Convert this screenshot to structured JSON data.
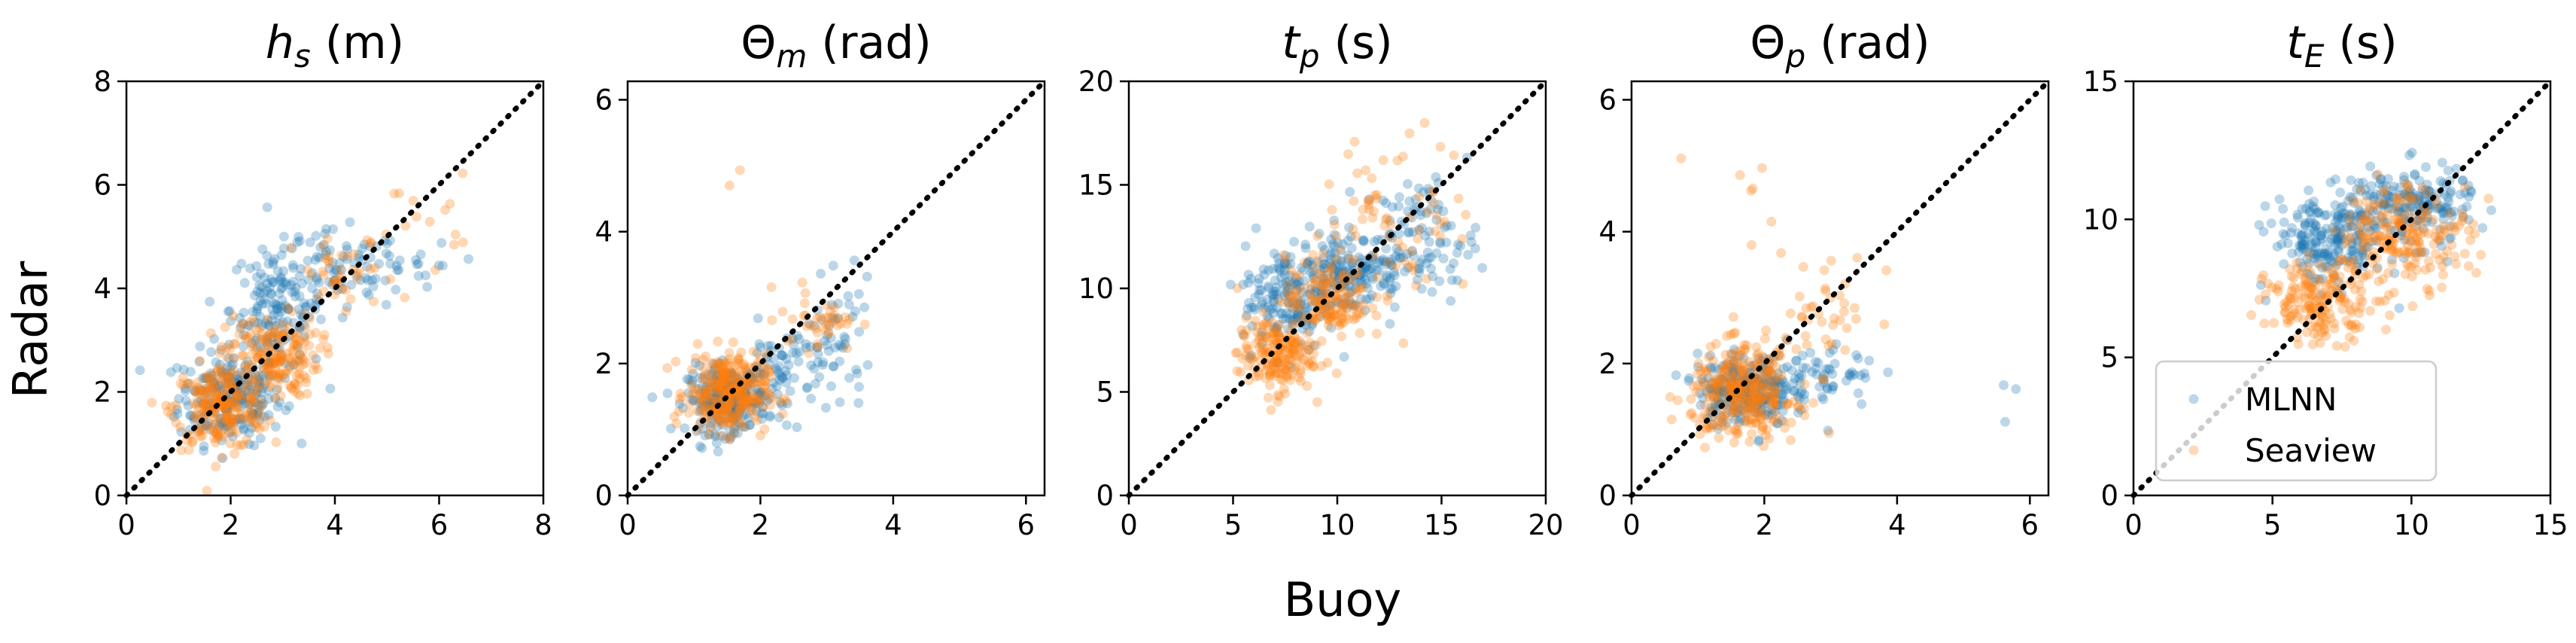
{
  "figure": {
    "xlabel": "Buoy",
    "ylabel": "Radar"
  },
  "legend": {
    "entries": [
      "MLNN",
      "Seaview"
    ],
    "placement": "lower-right",
    "panel_index": 4
  },
  "colors": {
    "MLNN": "#1f77b4",
    "Seaview": "#ff7f0e",
    "identity_line": "#000000"
  },
  "chart_data": [
    {
      "type": "scatter",
      "title": {
        "base": "h",
        "sub": "s",
        "unit": "(m)"
      },
      "xlim": [
        0,
        8
      ],
      "ylim": [
        0,
        8
      ],
      "xticks": [
        0,
        2,
        4,
        6,
        8
      ],
      "yticks": [
        0,
        2,
        4,
        6,
        8
      ],
      "identity_line": true,
      "series": [
        {
          "name": "MLNN",
          "clusters": [
            {
              "cx": 2.0,
              "cy": 1.9,
              "sx": 0.5,
              "sy": 0.45,
              "n": 220
            },
            {
              "cx": 2.9,
              "cy": 3.6,
              "sx": 0.45,
              "sy": 0.6,
              "n": 160
            },
            {
              "cx": 4.1,
              "cy": 4.3,
              "sx": 0.6,
              "sy": 0.4,
              "n": 70
            },
            {
              "cx": 5.6,
              "cy": 4.4,
              "sx": 0.4,
              "sy": 0.25,
              "n": 20
            }
          ]
        },
        {
          "name": "Seaview",
          "clusters": [
            {
              "cx": 1.8,
              "cy": 1.7,
              "sx": 0.45,
              "sy": 0.4,
              "n": 220
            },
            {
              "cx": 2.8,
              "cy": 2.7,
              "sx": 0.45,
              "sy": 0.4,
              "n": 180
            },
            {
              "cx": 4.2,
              "cy": 4.2,
              "sx": 0.5,
              "sy": 0.4,
              "n": 40
            },
            {
              "cx": 5.7,
              "cy": 5.4,
              "sx": 0.45,
              "sy": 0.4,
              "n": 15
            }
          ]
        }
      ]
    },
    {
      "type": "scatter",
      "title": {
        "base": "Θ",
        "sub": "m",
        "unit": "(rad)"
      },
      "xlim": [
        0,
        6.28
      ],
      "ylim": [
        0,
        6.28
      ],
      "xticks": [
        0,
        2,
        4,
        6
      ],
      "yticks": [
        0,
        2,
        4,
        6
      ],
      "identity_line": true,
      "series": [
        {
          "name": "MLNN",
          "clusters": [
            {
              "cx": 1.5,
              "cy": 1.45,
              "sx": 0.3,
              "sy": 0.25,
              "n": 250
            },
            {
              "cx": 2.4,
              "cy": 1.9,
              "sx": 0.4,
              "sy": 0.35,
              "n": 80
            },
            {
              "cx": 3.2,
              "cy": 2.4,
              "sx": 0.25,
              "sy": 0.4,
              "n": 40
            }
          ]
        },
        {
          "name": "Seaview",
          "clusters": [
            {
              "cx": 1.5,
              "cy": 1.55,
              "sx": 0.3,
              "sy": 0.3,
              "n": 300
            },
            {
              "cx": 2.9,
              "cy": 2.7,
              "sx": 0.3,
              "sy": 0.25,
              "n": 40
            },
            {
              "cx": 1.8,
              "cy": 5.0,
              "sx": 0.08,
              "sy": 0.2,
              "n": 2
            }
          ]
        }
      ]
    },
    {
      "type": "scatter",
      "title": {
        "base": "t",
        "sub": "p",
        "unit": "(s)"
      },
      "xlim": [
        0,
        20
      ],
      "ylim": [
        0,
        20
      ],
      "xticks": [
        0,
        5,
        10,
        15,
        20
      ],
      "yticks": [
        0,
        5,
        10,
        15,
        20
      ],
      "identity_line": true,
      "series": [
        {
          "name": "MLNN",
          "clusters": [
            {
              "cx": 7.5,
              "cy": 9.5,
              "sx": 1.0,
              "sy": 1.3,
              "n": 150
            },
            {
              "cx": 10.5,
              "cy": 10.8,
              "sx": 1.3,
              "sy": 1.0,
              "n": 180
            },
            {
              "cx": 14.0,
              "cy": 12.5,
              "sx": 1.4,
              "sy": 1.4,
              "n": 100
            }
          ]
        },
        {
          "name": "Seaview",
          "clusters": [
            {
              "cx": 7.0,
              "cy": 6.8,
              "sx": 0.9,
              "sy": 0.9,
              "n": 180
            },
            {
              "cx": 9.5,
              "cy": 9.5,
              "sx": 1.0,
              "sy": 1.0,
              "n": 150
            },
            {
              "cx": 13.0,
              "cy": 13.5,
              "sx": 1.8,
              "sy": 2.0,
              "n": 70
            }
          ]
        }
      ]
    },
    {
      "type": "scatter",
      "title": {
        "base": "Θ",
        "sub": "p",
        "unit": "(rad)"
      },
      "xlim": [
        0,
        6.28
      ],
      "ylim": [
        0,
        6.28
      ],
      "xticks": [
        0,
        2,
        4,
        6
      ],
      "yticks": [
        0,
        2,
        4,
        6
      ],
      "identity_line": true,
      "series": [
        {
          "name": "MLNN",
          "clusters": [
            {
              "cx": 1.7,
              "cy": 1.6,
              "sx": 0.35,
              "sy": 0.25,
              "n": 250
            },
            {
              "cx": 2.8,
              "cy": 1.8,
              "sx": 0.45,
              "sy": 0.3,
              "n": 70
            },
            {
              "cx": 5.7,
              "cy": 1.5,
              "sx": 0.1,
              "sy": 0.15,
              "n": 3
            }
          ]
        },
        {
          "name": "Seaview",
          "clusters": [
            {
              "cx": 1.7,
              "cy": 1.55,
              "sx": 0.4,
              "sy": 0.35,
              "n": 300
            },
            {
              "cx": 2.9,
              "cy": 2.8,
              "sx": 0.4,
              "sy": 0.45,
              "n": 40
            },
            {
              "cx": 2.0,
              "cy": 4.5,
              "sx": 0.15,
              "sy": 0.5,
              "n": 6
            },
            {
              "cx": 0.7,
              "cy": 5.1,
              "sx": 0.05,
              "sy": 0.05,
              "n": 1
            }
          ]
        }
      ]
    },
    {
      "type": "scatter",
      "title": {
        "base": "t",
        "sub": "E",
        "unit": "(s)"
      },
      "xlim": [
        0,
        15
      ],
      "ylim": [
        0,
        15
      ],
      "xticks": [
        0,
        5,
        10,
        15
      ],
      "yticks": [
        0,
        5,
        10,
        15
      ],
      "identity_line": true,
      "series": [
        {
          "name": "MLNN",
          "clusters": [
            {
              "cx": 7.0,
              "cy": 9.2,
              "sx": 1.0,
              "sy": 0.8,
              "n": 200
            },
            {
              "cx": 9.8,
              "cy": 10.5,
              "sx": 1.2,
              "sy": 0.7,
              "n": 200
            }
          ]
        },
        {
          "name": "Seaview",
          "clusters": [
            {
              "cx": 6.8,
              "cy": 7.0,
              "sx": 1.0,
              "sy": 0.7,
              "n": 180
            },
            {
              "cx": 9.8,
              "cy": 9.5,
              "sx": 1.2,
              "sy": 0.9,
              "n": 200
            }
          ]
        }
      ]
    }
  ]
}
